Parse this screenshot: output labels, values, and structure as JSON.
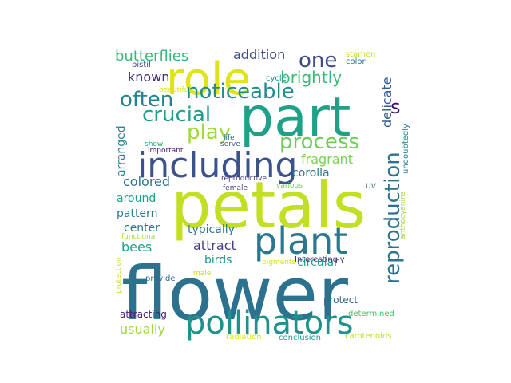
{
  "words": [
    {
      "text": "flower",
      "color": "#2c728e"
    },
    {
      "text": "petals",
      "color": "#c2df23"
    },
    {
      "text": "part",
      "color": "#1fa187"
    },
    {
      "text": "role",
      "color": "#e0e318"
    },
    {
      "text": "including",
      "color": "#3b528b"
    },
    {
      "text": "plant",
      "color": "#2a788e"
    },
    {
      "text": "pollinators",
      "color": "#21918c"
    },
    {
      "text": "reproduction",
      "color": "#2c728e"
    },
    {
      "text": "noticeable",
      "color": "#228c8d"
    },
    {
      "text": "process",
      "color": "#6ccd5a"
    },
    {
      "text": "crucial",
      "color": "#1f9e89"
    },
    {
      "text": "often",
      "color": "#26828e"
    },
    {
      "text": "play",
      "color": "#a0da39"
    },
    {
      "text": "one",
      "color": "#3e4a89"
    },
    {
      "text": "brightly",
      "color": "#38b977"
    },
    {
      "text": "butterflies",
      "color": "#35b779"
    },
    {
      "text": "s",
      "color": "#3b0f70"
    },
    {
      "text": "addition",
      "color": "#3e4a89"
    },
    {
      "text": "known",
      "color": "#472d7b"
    },
    {
      "text": "delicate",
      "color": "#365c8d"
    },
    {
      "text": "fragrant",
      "color": "#7ad151"
    },
    {
      "text": "colored",
      "color": "#2c728e"
    },
    {
      "text": "corolla",
      "color": "#287c8e"
    },
    {
      "text": "arranged",
      "color": "#25858e"
    },
    {
      "text": "around",
      "color": "#1fa287"
    },
    {
      "text": "pattern",
      "color": "#2a788e"
    },
    {
      "text": "typically",
      "color": "#2b748e"
    },
    {
      "text": "attract",
      "color": "#433e85"
    },
    {
      "text": "center",
      "color": "#2a778e"
    },
    {
      "text": "bees",
      "color": "#1fa187"
    },
    {
      "text": "birds",
      "color": "#21918c"
    },
    {
      "text": "circular",
      "color": "#1f9e89"
    },
    {
      "text": "protect",
      "color": "#31688e"
    },
    {
      "text": "attracting",
      "color": "#482173"
    },
    {
      "text": "usually",
      "color": "#9fda3a"
    },
    {
      "text": "undoubtedly",
      "color": "#26828e"
    },
    {
      "text": "anthocyanins",
      "color": "#a5db36"
    },
    {
      "text": "stamen",
      "color": "#c5e021"
    },
    {
      "text": "pistil",
      "color": "#3f4788"
    },
    {
      "text": "color",
      "color": "#2c728e"
    },
    {
      "text": "beautiful",
      "color": "#dde318"
    },
    {
      "text": "cycle",
      "color": "#20928c"
    },
    {
      "text": "life",
      "color": "#2f6b8e"
    },
    {
      "text": "show",
      "color": "#22a785"
    },
    {
      "text": "serve",
      "color": "#375b8d"
    },
    {
      "text": "important",
      "color": "#481769"
    },
    {
      "text": "reproductive",
      "color": "#443a83"
    },
    {
      "text": "female",
      "color": "#433e85"
    },
    {
      "text": "various",
      "color": "#6ece58"
    },
    {
      "text": "UV",
      "color": "#2e6e8e"
    },
    {
      "text": "Interestingly",
      "color": "#482878"
    },
    {
      "text": "functional",
      "color": "#a8db34"
    },
    {
      "text": "protection",
      "color": "#bddf26"
    },
    {
      "text": "pigments",
      "color": "#d8e219"
    },
    {
      "text": "male",
      "color": "#c8e020"
    },
    {
      "text": "provide",
      "color": "#31688e"
    },
    {
      "text": "determined",
      "color": "#4ac16d"
    },
    {
      "text": "radiation",
      "color": "#dae319"
    },
    {
      "text": "conclusion",
      "color": "#1e9b8a"
    },
    {
      "text": "carotenoids",
      "color": "#bfdf25"
    }
  ]
}
